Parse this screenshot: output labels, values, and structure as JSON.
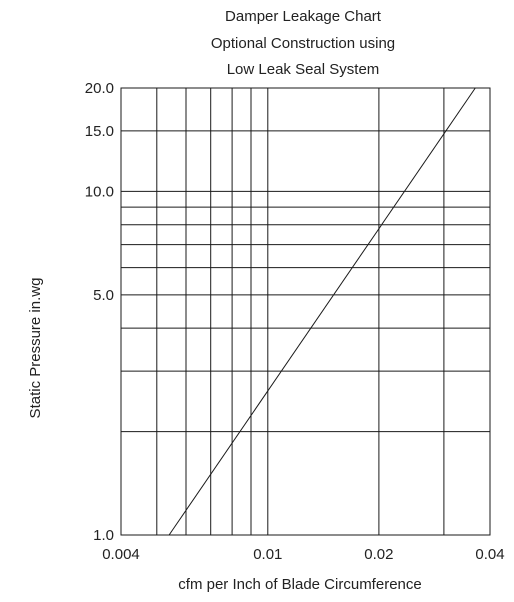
{
  "chart_data": {
    "type": "line",
    "title": [
      "Damper Leakage Chart",
      "Optional Construction using",
      "Low Leak Seal System"
    ],
    "xlabel": "cfm per Inch of Blade Circumference",
    "ylabel": "Static Pressure in.wg",
    "x_scale": "log",
    "y_scale": "log",
    "xlim": [
      0.004,
      0.04
    ],
    "ylim": [
      1.0,
      20.0
    ],
    "x_ticks": [
      {
        "value": 0.004,
        "label": "0.004"
      },
      {
        "value": 0.01,
        "label": "0.01"
      },
      {
        "value": 0.02,
        "label": "0.02"
      },
      {
        "value": 0.04,
        "label": "0.04"
      }
    ],
    "y_ticks": [
      {
        "value": 1.0,
        "label": "1.0"
      },
      {
        "value": 5.0,
        "label": "5.0"
      },
      {
        "value": 10.0,
        "label": "10.0"
      },
      {
        "value": 15.0,
        "label": "15.0"
      },
      {
        "value": 20.0,
        "label": "20.0"
      }
    ],
    "x_gridlines": [
      0.005,
      0.006,
      0.007,
      0.008,
      0.009,
      0.01,
      0.02,
      0.03
    ],
    "y_gridlines": [
      2,
      3,
      4,
      5,
      6,
      7,
      8,
      9,
      10,
      15
    ],
    "grid": true,
    "series": [
      {
        "x": [
          0.0054,
          0.0365
        ],
        "y": [
          1.0,
          20.0
        ]
      }
    ]
  }
}
